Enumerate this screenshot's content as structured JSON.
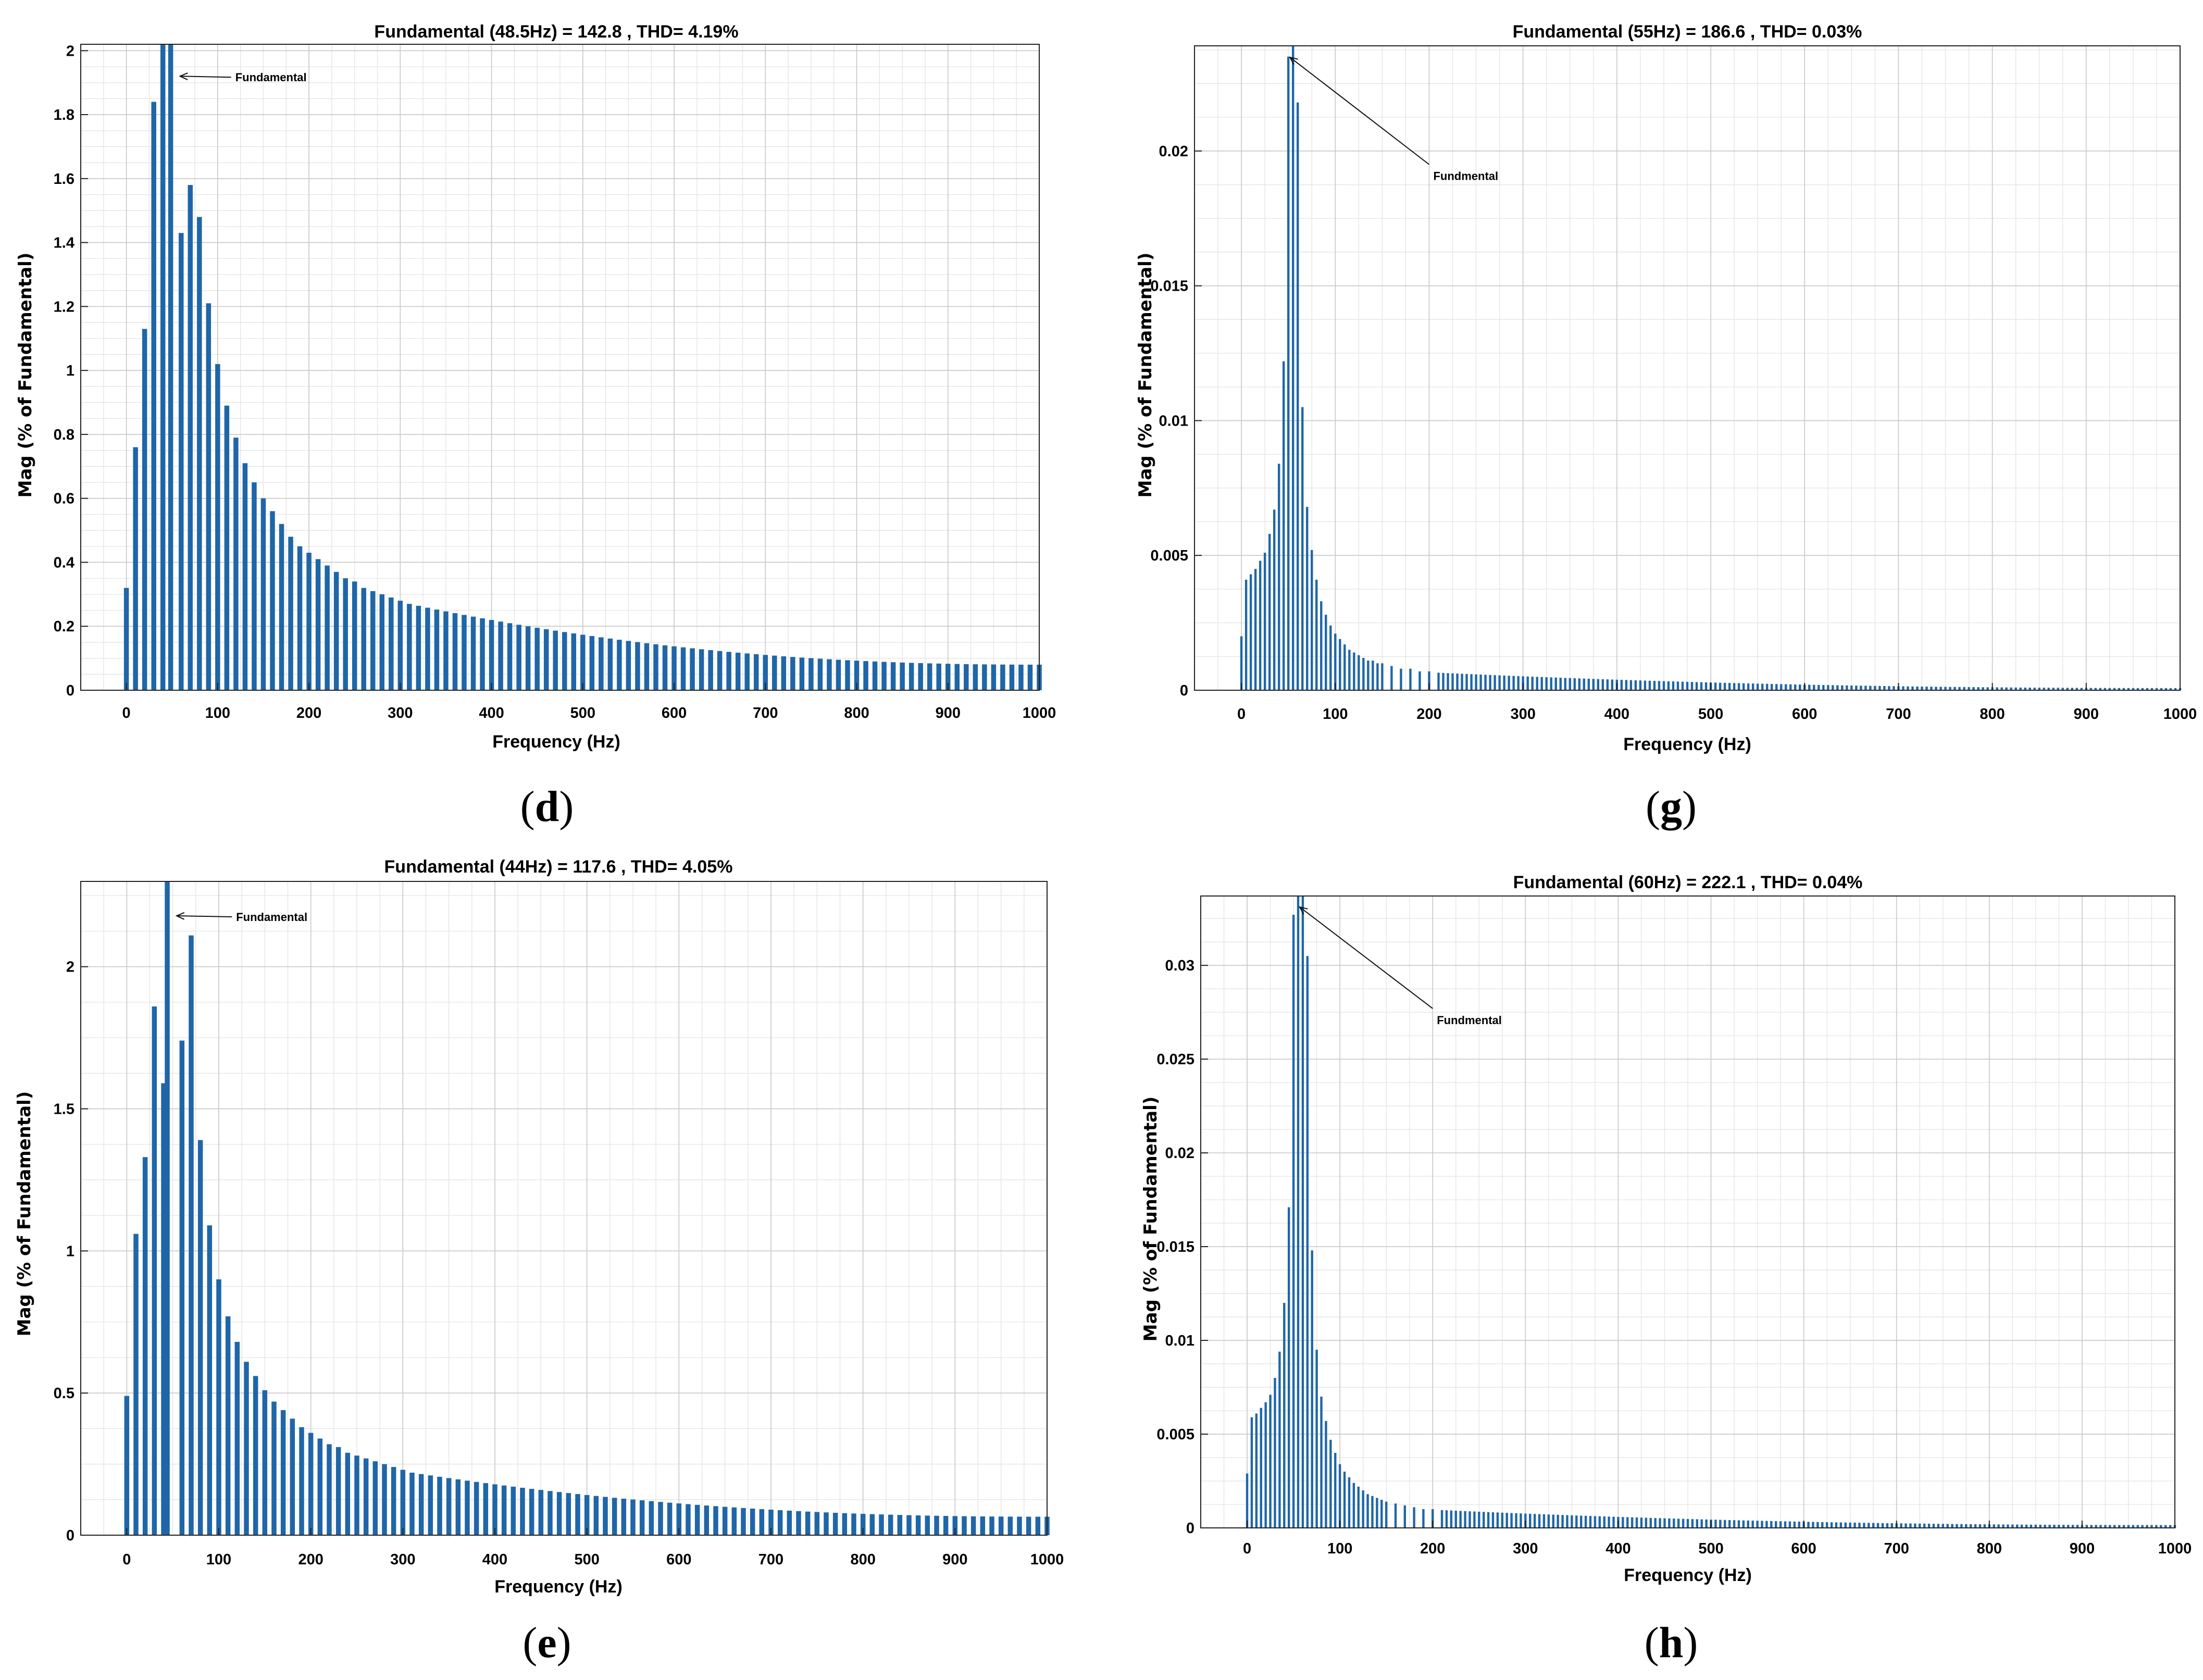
{
  "accent_color": "#1f66a8",
  "chart_data": [
    {
      "id": "d",
      "caption": "d",
      "type": "bar",
      "title": "Fundamental (48.5Hz) = 142.8 , THD= 4.19%",
      "xlabel": "Frequency (Hz)",
      "ylabel": "Mag (% of Fundamental)",
      "xlim": [
        -50,
        1000
      ],
      "ylim": [
        0,
        2.02
      ],
      "xticks": [
        0,
        100,
        200,
        300,
        400,
        500,
        600,
        700,
        800,
        900,
        1000
      ],
      "xtick_labels": [
        "0",
        "100",
        "200",
        "300",
        "400",
        "500",
        "600",
        "700",
        "800",
        "900",
        "1000"
      ],
      "yticks": [
        0,
        0.2,
        0.4,
        0.6,
        0.8,
        1,
        1.2,
        1.4,
        1.6,
        1.8,
        2
      ],
      "ytick_labels": [
        "0",
        "0.2",
        "0.4",
        "0.6",
        "0.8",
        "1",
        "1.2",
        "1.4",
        "1.6",
        "1.8",
        "2"
      ],
      "fundamental_hz": 48.5,
      "bar_spacing_hz": 10,
      "bars_explicit": [
        [
          0,
          0.32
        ],
        [
          10,
          0.76
        ],
        [
          20,
          1.13
        ],
        [
          30,
          1.84
        ],
        [
          40,
          2.02
        ],
        [
          48.5,
          2.02
        ],
        [
          60,
          1.43
        ],
        [
          70,
          1.58
        ],
        [
          80,
          1.48
        ],
        [
          90,
          1.21
        ],
        [
          100,
          1.02
        ],
        [
          110,
          0.89
        ],
        [
          120,
          0.79
        ],
        [
          130,
          0.71
        ],
        [
          140,
          0.65
        ],
        [
          150,
          0.6
        ],
        [
          160,
          0.56
        ],
        [
          170,
          0.52
        ],
        [
          180,
          0.48
        ],
        [
          190,
          0.45
        ],
        [
          200,
          0.43
        ],
        [
          210,
          0.41
        ],
        [
          220,
          0.39
        ],
        [
          230,
          0.37
        ],
        [
          240,
          0.35
        ],
        [
          250,
          0.34
        ],
        [
          260,
          0.32
        ],
        [
          270,
          0.31
        ],
        [
          280,
          0.3
        ],
        [
          290,
          0.29
        ],
        [
          300,
          0.28
        ]
      ],
      "tail": {
        "from_hz": 310,
        "to_hz": 1000,
        "start_value": 0.27,
        "end_value": 0.08
      },
      "annotation": {
        "text": "Fundamental",
        "x_hz": 52,
        "y": 1.93
      }
    },
    {
      "id": "g",
      "caption": "g",
      "type": "bar",
      "title": "Fundamental (55Hz) = 186.6 , THD= 0.03%",
      "xlabel": "Frequency (Hz)",
      "ylabel": "Mag (% of Fundamental)",
      "xlim": [
        -50,
        1000
      ],
      "ylim": [
        0,
        0.0239
      ],
      "xticks": [
        0,
        100,
        200,
        300,
        400,
        500,
        600,
        700,
        800,
        900,
        1000
      ],
      "xtick_labels": [
        "0",
        "100",
        "200",
        "300",
        "400",
        "500",
        "600",
        "700",
        "800",
        "900",
        "1000"
      ],
      "yticks": [
        0,
        0.005,
        0.01,
        0.015,
        0.02
      ],
      "ytick_labels": [
        "0",
        "0.005",
        "0.01",
        "0.015",
        "0.02"
      ],
      "fundamental_hz": 55,
      "bar_spacing_hz": 5,
      "bars_explicit": [
        [
          0,
          0.002
        ],
        [
          5,
          0.0041
        ],
        [
          10,
          0.0043
        ],
        [
          15,
          0.0045
        ],
        [
          20,
          0.0048
        ],
        [
          25,
          0.0051
        ],
        [
          30,
          0.0058
        ],
        [
          35,
          0.0067
        ],
        [
          40,
          0.0084
        ],
        [
          45,
          0.0122
        ],
        [
          50,
          0.0235
        ],
        [
          55,
          0.0239
        ],
        [
          60,
          0.0218
        ],
        [
          65,
          0.0105
        ],
        [
          70,
          0.0068
        ],
        [
          75,
          0.0052
        ],
        [
          80,
          0.0041
        ],
        [
          85,
          0.0033
        ],
        [
          90,
          0.0028
        ],
        [
          95,
          0.0024
        ],
        [
          100,
          0.0021
        ],
        [
          105,
          0.0019
        ],
        [
          110,
          0.0017
        ],
        [
          115,
          0.0015
        ],
        [
          120,
          0.0014
        ],
        [
          125,
          0.0013
        ],
        [
          130,
          0.0012
        ],
        [
          135,
          0.0011
        ],
        [
          140,
          0.0011
        ],
        [
          145,
          0.001
        ],
        [
          150,
          0.001
        ],
        [
          160,
          0.0009
        ],
        [
          170,
          0.0008
        ],
        [
          180,
          0.0008
        ],
        [
          190,
          0.0007
        ],
        [
          200,
          0.0007
        ]
      ],
      "tail": {
        "from_hz": 210,
        "to_hz": 1000,
        "start_value": 0.00065,
        "end_value": 8e-05
      },
      "annotation": {
        "text": "Fundmental",
        "x_hz": 200,
        "y": 0.0195
      }
    },
    {
      "id": "e",
      "caption": "e",
      "type": "bar",
      "title": "Fundamental (44Hz) = 117.6 , THD= 4.05%",
      "xlabel": "Frequency (Hz)",
      "ylabel": "Mag (% of Fundamental)",
      "xlim": [
        -50,
        1000
      ],
      "ylim": [
        0,
        2.3
      ],
      "xticks": [
        0,
        100,
        200,
        300,
        400,
        500,
        600,
        700,
        800,
        900,
        1000
      ],
      "xtick_labels": [
        "0",
        "100",
        "200",
        "300",
        "400",
        "500",
        "600",
        "700",
        "800",
        "900",
        "1000"
      ],
      "yticks": [
        0,
        0.5,
        1,
        1.5,
        2
      ],
      "ytick_labels": [
        "0",
        "0.5",
        "1",
        "1.5",
        "2"
      ],
      "fundamental_hz": 44,
      "bar_spacing_hz": 10,
      "bars_explicit": [
        [
          0,
          0.49
        ],
        [
          10,
          1.06
        ],
        [
          20,
          1.33
        ],
        [
          30,
          1.86
        ],
        [
          40,
          1.59
        ],
        [
          44,
          2.3
        ],
        [
          60,
          1.74
        ],
        [
          70,
          2.11
        ],
        [
          80,
          1.39
        ],
        [
          90,
          1.09
        ],
        [
          100,
          0.9
        ],
        [
          110,
          0.77
        ],
        [
          120,
          0.68
        ],
        [
          130,
          0.61
        ],
        [
          140,
          0.56
        ],
        [
          150,
          0.51
        ],
        [
          160,
          0.47
        ],
        [
          170,
          0.44
        ],
        [
          180,
          0.41
        ],
        [
          190,
          0.38
        ],
        [
          200,
          0.36
        ],
        [
          210,
          0.34
        ],
        [
          220,
          0.32
        ],
        [
          230,
          0.31
        ],
        [
          240,
          0.29
        ],
        [
          250,
          0.28
        ],
        [
          260,
          0.27
        ],
        [
          270,
          0.26
        ],
        [
          280,
          0.25
        ],
        [
          290,
          0.24
        ],
        [
          300,
          0.23
        ]
      ],
      "tail": {
        "from_hz": 310,
        "to_hz": 1000,
        "start_value": 0.22,
        "end_value": 0.065
      },
      "annotation": {
        "text": "Fundamental",
        "x_hz": 52,
        "y": 2.19
      }
    },
    {
      "id": "h",
      "caption": "h",
      "type": "bar",
      "title": "Fundamental (60Hz) = 222.1 , THD= 0.04%",
      "xlabel": "Frequency (Hz)",
      "ylabel": "Mag (% of Fundamental)",
      "xlim": [
        -50,
        1000
      ],
      "ylim": [
        0,
        0.0337
      ],
      "xticks": [
        0,
        100,
        200,
        300,
        400,
        500,
        600,
        700,
        800,
        900,
        1000
      ],
      "xtick_labels": [
        "0",
        "100",
        "200",
        "300",
        "400",
        "500",
        "600",
        "700",
        "800",
        "900",
        "1000"
      ],
      "yticks": [
        0,
        0.005,
        0.01,
        0.015,
        0.02,
        0.025,
        0.03
      ],
      "ytick_labels": [
        "0",
        "0.005",
        "0.01",
        "0.015",
        "0.02",
        "0.025",
        "0.03"
      ],
      "fundamental_hz": 60,
      "bar_spacing_hz": 5,
      "bars_explicit": [
        [
          0,
          0.0029
        ],
        [
          5,
          0.0059
        ],
        [
          10,
          0.0061
        ],
        [
          15,
          0.0064
        ],
        [
          20,
          0.0067
        ],
        [
          25,
          0.0071
        ],
        [
          30,
          0.008
        ],
        [
          35,
          0.0094
        ],
        [
          40,
          0.012
        ],
        [
          45,
          0.0171
        ],
        [
          50,
          0.0327
        ],
        [
          55,
          0.0337
        ],
        [
          60,
          0.0337
        ],
        [
          65,
          0.0305
        ],
        [
          70,
          0.0148
        ],
        [
          75,
          0.0095
        ],
        [
          80,
          0.007
        ],
        [
          85,
          0.0057
        ],
        [
          90,
          0.0047
        ],
        [
          95,
          0.004
        ],
        [
          100,
          0.0034
        ],
        [
          105,
          0.003
        ],
        [
          110,
          0.0027
        ],
        [
          115,
          0.0024
        ],
        [
          120,
          0.0022
        ],
        [
          125,
          0.002
        ],
        [
          130,
          0.0018
        ],
        [
          135,
          0.0017
        ],
        [
          140,
          0.0016
        ],
        [
          145,
          0.0015
        ],
        [
          150,
          0.0014
        ],
        [
          160,
          0.0013
        ],
        [
          170,
          0.0012
        ],
        [
          180,
          0.0011
        ],
        [
          190,
          0.001
        ],
        [
          200,
          0.001
        ]
      ],
      "tail": {
        "from_hz": 210,
        "to_hz": 1000,
        "start_value": 0.00095,
        "end_value": 0.00015
      },
      "annotation": {
        "text": "Fundmental",
        "x_hz": 200,
        "y": 0.0277
      }
    }
  ]
}
